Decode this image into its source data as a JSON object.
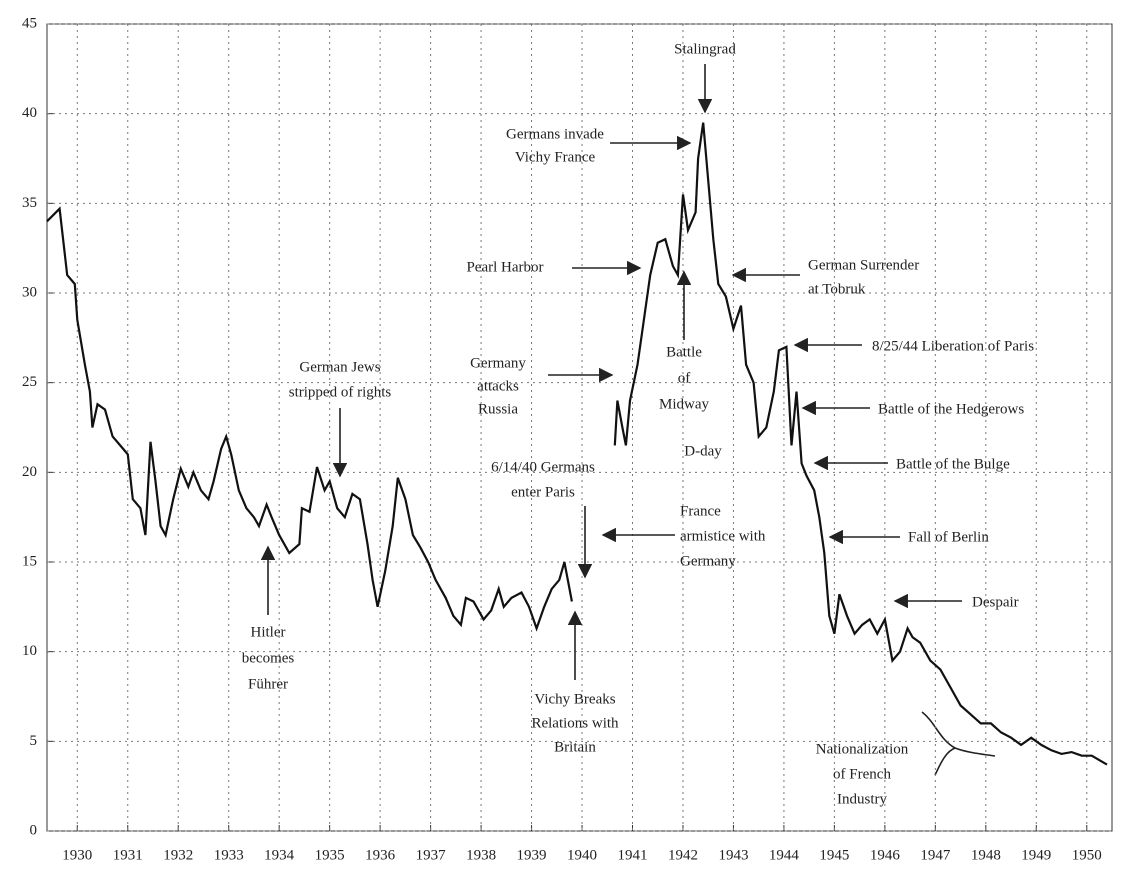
{
  "chart_data": {
    "type": "line",
    "color": "#111",
    "grid": true,
    "xlim": [
      1929.9,
      1951
    ],
    "ylim": [
      0,
      45
    ],
    "yticks": [
      0,
      5,
      10,
      15,
      20,
      25,
      30,
      35,
      40,
      45
    ],
    "xticks": [
      {
        "value": 1930.5,
        "label": "1930"
      },
      {
        "value": 1931.5,
        "label": "1931"
      },
      {
        "value": 1932.5,
        "label": "1932"
      },
      {
        "value": 1933.5,
        "label": "1933"
      },
      {
        "value": 1934.5,
        "label": "1934"
      },
      {
        "value": 1935.5,
        "label": "1935"
      },
      {
        "value": 1936.5,
        "label": "1936"
      },
      {
        "value": 1937.5,
        "label": "1937"
      },
      {
        "value": 1938.5,
        "label": "1938"
      },
      {
        "value": 1939.5,
        "label": "1939"
      },
      {
        "value": 1940.5,
        "label": "1940"
      },
      {
        "value": 1941.5,
        "label": "1941"
      },
      {
        "value": 1942.5,
        "label": "1942"
      },
      {
        "value": 1943.5,
        "label": "1943"
      },
      {
        "value": 1944.5,
        "label": "1944"
      },
      {
        "value": 1945.5,
        "label": "1945"
      },
      {
        "value": 1946.5,
        "label": "1946"
      },
      {
        "value": 1947.5,
        "label": "1947"
      },
      {
        "value": 1948.5,
        "label": "1948"
      },
      {
        "value": 1949.5,
        "label": "1949"
      },
      {
        "value": 1950.5,
        "label": "1950"
      }
    ],
    "x": [
      1929.9,
      1930.15,
      1930.3,
      1930.45,
      1930.5,
      1930.65,
      1930.75,
      1930.8,
      1930.9,
      1931.05,
      1931.2,
      1931.35,
      1931.5,
      1931.6,
      1931.75,
      1931.85,
      1931.95,
      1932.05,
      1932.15,
      1932.25,
      1932.4,
      1932.55,
      1932.7,
      1932.8,
      1932.95,
      1933.1,
      1933.2,
      1933.35,
      1933.45,
      1933.55,
      1933.7,
      1933.85,
      1934.0,
      1934.1,
      1934.25,
      1934.35,
      1934.5,
      1934.7,
      1934.9,
      1934.95,
      1935.1,
      1935.25,
      1935.4,
      1935.5,
      1935.65,
      1935.8,
      1935.95,
      1936.1,
      1936.25,
      1936.35,
      1936.45,
      1936.6,
      1936.75,
      1936.85,
      1937.0,
      1937.15,
      1937.3,
      1937.45,
      1937.6,
      1937.8,
      1937.95,
      1938.1,
      1938.2,
      1938.35,
      1938.55,
      1938.7,
      1938.85,
      1938.95,
      1939.1,
      1939.3,
      1939.45,
      1939.6,
      1939.75,
      1939.9,
      1940.05,
      1940.15,
      1940.3,
      1940.7,
      1941.15,
      1941.2,
      1941.3,
      1941.37,
      1941.45,
      1941.6,
      1941.7,
      1941.85,
      1942.0,
      1942.15,
      1942.3,
      1942.4,
      1942.5,
      1942.6,
      1942.75,
      1942.8,
      1942.9,
      1943.1,
      1943.2,
      1943.35,
      1943.5,
      1943.65,
      1943.75,
      1943.9,
      1944.0,
      1944.15,
      1944.3,
      1944.4,
      1944.55,
      1944.65,
      1944.75,
      1944.85,
      1944.95,
      1945.1,
      1945.2,
      1945.3,
      1945.4,
      1945.5,
      1945.6,
      1945.75,
      1945.9,
      1946.05,
      1946.2,
      1946.35,
      1946.5,
      1946.65,
      1946.8,
      1946.95,
      1947.05,
      1947.2,
      1947.4,
      1947.6,
      1947.8,
      1948.0,
      1948.2,
      1948.4,
      1948.6,
      1948.8,
      1949.0,
      1949.2,
      1949.4,
      1949.6,
      1949.8,
      1950.0,
      1950.2,
      1950.4,
      1950.6,
      1950.9
    ],
    "values": [
      34,
      34.7,
      31,
      30.5,
      28.5,
      26,
      24.5,
      22.5,
      23.8,
      23.5,
      22,
      21.5,
      21,
      18.5,
      18,
      16.5,
      21.7,
      19.5,
      17,
      16.5,
      18.5,
      20.2,
      19.2,
      20,
      19,
      18.5,
      19.5,
      21.3,
      22,
      21,
      19,
      18,
      17.5,
      17,
      18.2,
      17.5,
      16.5,
      15.5,
      16,
      18,
      17.8,
      20.3,
      19,
      19.5,
      18,
      17.5,
      18.8,
      18.5,
      16,
      14,
      12.5,
      14.5,
      17,
      19.7,
      18.5,
      16.5,
      15.8,
      15,
      14,
      13,
      12,
      11.5,
      13,
      12.8,
      11.8,
      12.3,
      13.5,
      12.5,
      13,
      13.3,
      12.5,
      11.3,
      12.5,
      13.5,
      14,
      15,
      12.8,
      null,
      21.5,
      24,
      22.5,
      21.5,
      24,
      26,
      28,
      31,
      32.8,
      33,
      31.5,
      31,
      35.5,
      33.5,
      34.5,
      37.5,
      39.5,
      33,
      30.5,
      29.8,
      28,
      29.3,
      26,
      25,
      22,
      22.5,
      24.5,
      26.8,
      27,
      21.5,
      24.5,
      20.5,
      19.8,
      19,
      17.5,
      15.5,
      12,
      11,
      13.2,
      12,
      11,
      11.5,
      11.8,
      11,
      11.8,
      9.5,
      10,
      11.3,
      10.8,
      10.5,
      9.5,
      9,
      8,
      7,
      6.5,
      6,
      6,
      5.5,
      5.2,
      4.8,
      5.2,
      4.8,
      4.5,
      4.3,
      4.4,
      4.2,
      4.2,
      3.7
    ],
    "annotations": [
      [
        "Stalingrad"
      ],
      [
        "Germans invade",
        "Vichy France"
      ],
      [
        "Pearl Harbor"
      ],
      [
        "German Surrender",
        "at Tobruk"
      ],
      [
        "Germany",
        "attacks",
        "Russia"
      ],
      [
        "Battle",
        "of",
        "Midway"
      ],
      [
        "D-day"
      ],
      [
        "8/25/44 Liberation of Paris"
      ],
      [
        "Battle of the Hedgerows"
      ],
      [
        "Battle of the Bulge"
      ],
      [
        "Fall of Berlin"
      ],
      [
        "Despair"
      ],
      [
        "Nationalization",
        "of French",
        "Industry"
      ],
      [
        "German Jews",
        "stripped of rights"
      ],
      [
        "Hitler",
        "becomes",
        "Führer"
      ],
      [
        "6/14/40 Germans",
        "enter Paris"
      ],
      [
        "France",
        "armistice with",
        "Germany"
      ],
      [
        "Vichy Breaks",
        "Relations with",
        "Britain"
      ]
    ]
  }
}
